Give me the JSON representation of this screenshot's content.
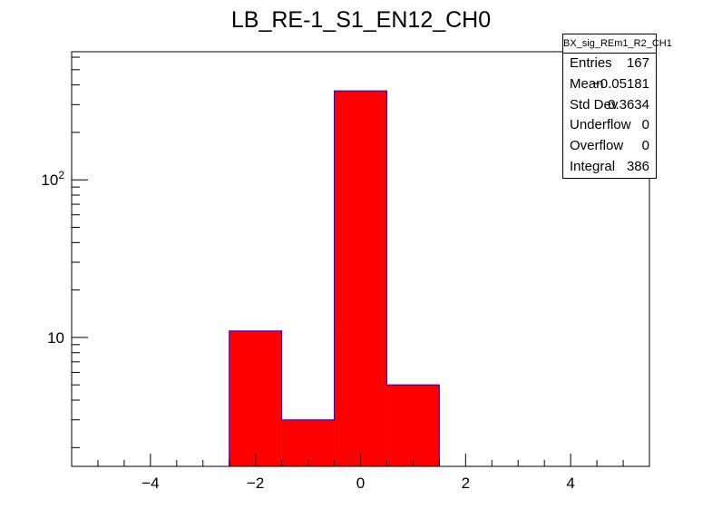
{
  "chart_data": {
    "type": "bar",
    "title": "LB_RE-1_S1_EN12_CH0",
    "xlabel": "",
    "ylabel": "",
    "x_axis": {
      "min": -5.5,
      "max": 5.5,
      "tick_labels": [
        "−4",
        "−2",
        "0",
        "2",
        "4"
      ],
      "tick_values": [
        -4,
        -2,
        0,
        2,
        4
      ]
    },
    "y_axis": {
      "scale": "log",
      "min": 1.52,
      "max": 650,
      "tick_labels": [
        "10",
        "10^2"
      ],
      "tick_values": [
        10,
        100
      ]
    },
    "bins": [
      {
        "low": -2.5,
        "high": -1.5,
        "value": 11
      },
      {
        "low": -1.5,
        "high": -0.5,
        "value": 3
      },
      {
        "low": -0.5,
        "high": 0.5,
        "value": 367
      },
      {
        "low": 0.5,
        "high": 1.5,
        "value": 5
      }
    ],
    "fill_color": "#ff0000",
    "line_color": "#0000ff",
    "grid": false
  },
  "stats": {
    "title": "BX_sig_REm1_R2_CH1",
    "rows": [
      {
        "label": "Entries",
        "value": "167"
      },
      {
        "label": "Mean",
        "value": "−0.05181"
      },
      {
        "label": "Std Dev",
        "value": "0.3634"
      },
      {
        "label": "Underflow",
        "value": "0"
      },
      {
        "label": "Overflow",
        "value": "0"
      },
      {
        "label": "Integral",
        "value": "386"
      }
    ]
  }
}
